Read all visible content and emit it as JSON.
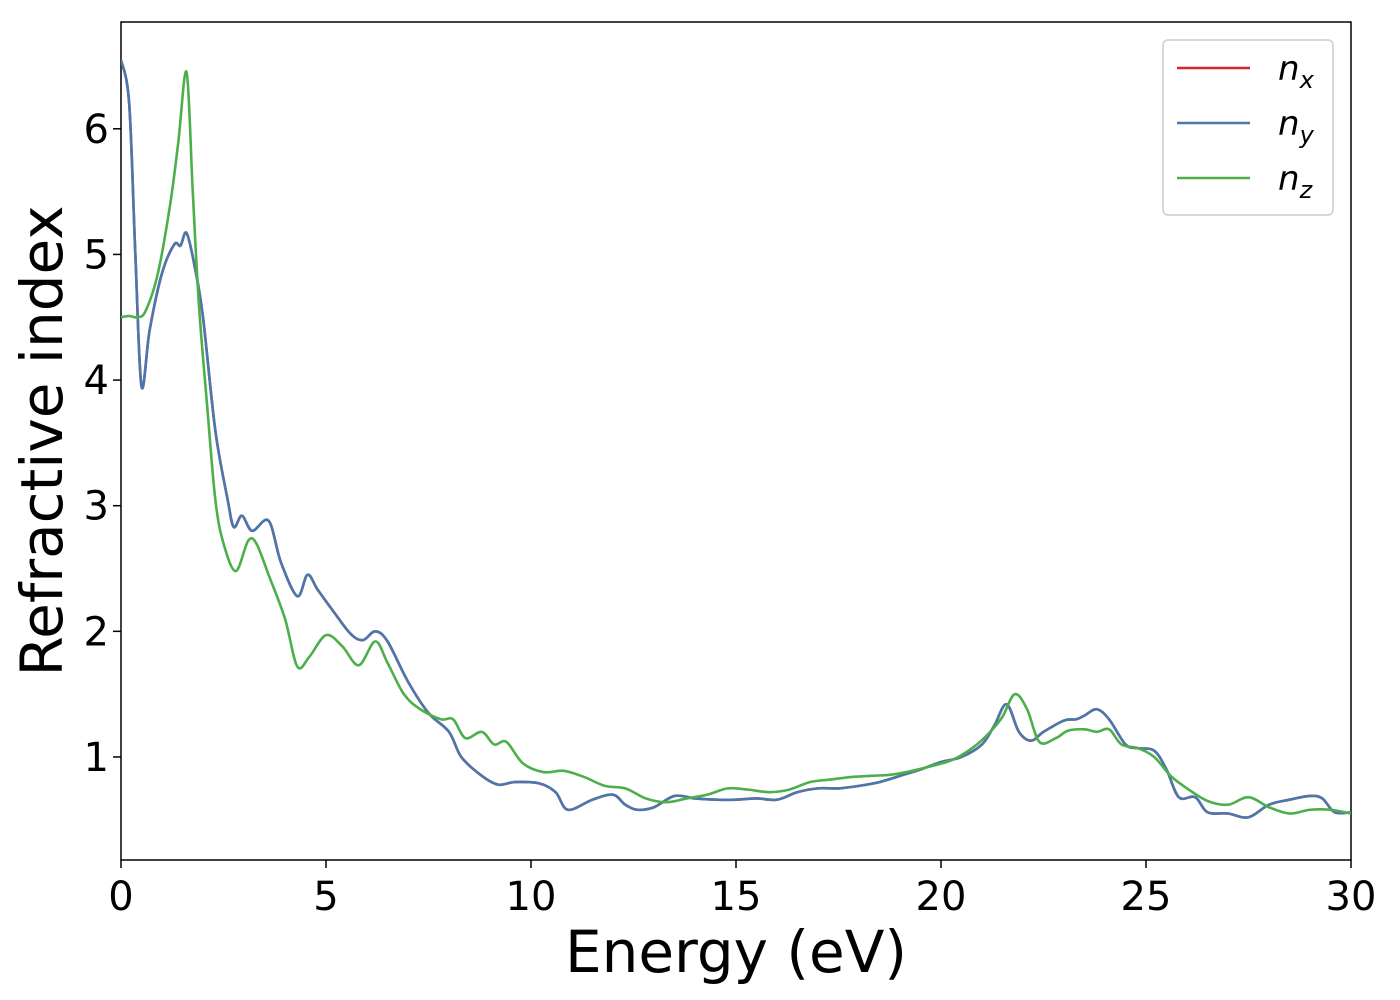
{
  "chart_data": {
    "type": "line",
    "title": "",
    "xlabel": "Energy (eV)",
    "ylabel": "Refractive index",
    "xlim": [
      0,
      30
    ],
    "ylim": [
      0.18,
      6.85
    ],
    "xticks": [
      0,
      5,
      10,
      15,
      20,
      25,
      30
    ],
    "xtick_labels": [
      "0",
      "5",
      "10",
      "15",
      "20",
      "25",
      "30"
    ],
    "yticks": [
      1,
      2,
      3,
      4,
      5,
      6
    ],
    "ytick_labels": [
      "1",
      "2",
      "3",
      "4",
      "5",
      "6"
    ],
    "grid": false,
    "legend_position": "top-right",
    "series": [
      {
        "name": "n_x",
        "legend_base": "n",
        "legend_sub": "x",
        "color": "#d62728",
        "x": [
          0,
          0.2,
          0.35,
          0.5,
          0.7,
          1.0,
          1.3,
          1.45,
          1.6,
          1.8,
          2.0,
          2.3,
          2.6,
          2.75,
          2.95,
          3.2,
          3.6,
          3.9,
          4.3,
          4.55,
          4.8,
          5.2,
          5.6,
          5.9,
          6.2,
          6.5,
          7.0,
          7.5,
          8.0,
          8.3,
          8.8,
          9.2,
          9.6,
          10.2,
          10.6,
          10.9,
          11.5,
          12.0,
          12.3,
          12.6,
          13.0,
          13.5,
          14.0,
          14.5,
          15.0,
          15.5,
          16.0,
          16.5,
          17.0,
          17.5,
          18.0,
          18.5,
          19.0,
          19.5,
          20.0,
          20.5,
          21.0,
          21.3,
          21.6,
          21.9,
          22.2,
          22.5,
          23.0,
          23.3,
          23.5,
          23.8,
          24.1,
          24.5,
          24.8,
          25.2,
          25.5,
          25.8,
          26.2,
          26.5,
          27.0,
          27.5,
          28.0,
          28.5,
          29.0,
          29.3,
          29.6,
          30.0
        ],
        "y": [
          6.55,
          6.2,
          5.0,
          3.95,
          4.4,
          4.85,
          5.08,
          5.07,
          5.17,
          4.9,
          4.5,
          3.6,
          3.05,
          2.83,
          2.92,
          2.8,
          2.88,
          2.55,
          2.28,
          2.45,
          2.33,
          2.15,
          1.98,
          1.93,
          2.0,
          1.92,
          1.6,
          1.35,
          1.2,
          1.0,
          0.85,
          0.78,
          0.8,
          0.79,
          0.72,
          0.58,
          0.66,
          0.7,
          0.62,
          0.58,
          0.6,
          0.69,
          0.67,
          0.66,
          0.66,
          0.67,
          0.66,
          0.72,
          0.75,
          0.75,
          0.77,
          0.8,
          0.85,
          0.9,
          0.96,
          1.0,
          1.1,
          1.25,
          1.42,
          1.2,
          1.13,
          1.2,
          1.29,
          1.3,
          1.33,
          1.38,
          1.3,
          1.1,
          1.07,
          1.05,
          0.9,
          0.68,
          0.68,
          0.56,
          0.55,
          0.52,
          0.62,
          0.66,
          0.69,
          0.67,
          0.56,
          0.56
        ]
      },
      {
        "name": "n_y",
        "legend_base": "n",
        "legend_sub": "y",
        "color": "#4a78ad",
        "x": [
          0,
          0.2,
          0.35,
          0.5,
          0.7,
          1.0,
          1.3,
          1.45,
          1.6,
          1.8,
          2.0,
          2.3,
          2.6,
          2.75,
          2.95,
          3.2,
          3.6,
          3.9,
          4.3,
          4.55,
          4.8,
          5.2,
          5.6,
          5.9,
          6.2,
          6.5,
          7.0,
          7.5,
          8.0,
          8.3,
          8.8,
          9.2,
          9.6,
          10.2,
          10.6,
          10.9,
          11.5,
          12.0,
          12.3,
          12.6,
          13.0,
          13.5,
          14.0,
          14.5,
          15.0,
          15.5,
          16.0,
          16.5,
          17.0,
          17.5,
          18.0,
          18.5,
          19.0,
          19.5,
          20.0,
          20.5,
          21.0,
          21.3,
          21.6,
          21.9,
          22.2,
          22.5,
          23.0,
          23.3,
          23.5,
          23.8,
          24.1,
          24.5,
          24.8,
          25.2,
          25.5,
          25.8,
          26.2,
          26.5,
          27.0,
          27.5,
          28.0,
          28.5,
          29.0,
          29.3,
          29.6,
          30.0
        ],
        "y": [
          6.55,
          6.2,
          5.0,
          3.95,
          4.4,
          4.85,
          5.08,
          5.07,
          5.17,
          4.9,
          4.5,
          3.6,
          3.05,
          2.83,
          2.92,
          2.8,
          2.88,
          2.55,
          2.28,
          2.45,
          2.33,
          2.15,
          1.98,
          1.93,
          2.0,
          1.92,
          1.6,
          1.35,
          1.2,
          1.0,
          0.85,
          0.78,
          0.8,
          0.79,
          0.72,
          0.58,
          0.66,
          0.7,
          0.62,
          0.58,
          0.6,
          0.69,
          0.67,
          0.66,
          0.66,
          0.67,
          0.66,
          0.72,
          0.75,
          0.75,
          0.77,
          0.8,
          0.85,
          0.9,
          0.96,
          1.0,
          1.1,
          1.25,
          1.42,
          1.2,
          1.13,
          1.2,
          1.29,
          1.3,
          1.33,
          1.38,
          1.3,
          1.1,
          1.07,
          1.05,
          0.9,
          0.68,
          0.68,
          0.56,
          0.55,
          0.52,
          0.62,
          0.66,
          0.69,
          0.67,
          0.56,
          0.56
        ]
      },
      {
        "name": "n_z",
        "legend_base": "n",
        "legend_sub": "z",
        "color": "#4daf4a",
        "x": [
          0,
          0.2,
          0.4,
          0.6,
          0.9,
          1.2,
          1.4,
          1.6,
          1.75,
          1.9,
          2.1,
          2.3,
          2.5,
          2.8,
          3.1,
          3.3,
          3.6,
          4.0,
          4.3,
          4.6,
          5.0,
          5.4,
          5.8,
          6.2,
          6.5,
          6.9,
          7.3,
          7.8,
          8.1,
          8.4,
          8.8,
          9.1,
          9.4,
          9.8,
          10.3,
          10.8,
          11.3,
          11.8,
          12.3,
          12.8,
          13.3,
          13.8,
          14.3,
          14.8,
          15.3,
          15.8,
          16.3,
          16.8,
          17.3,
          17.8,
          18.3,
          18.8,
          19.3,
          19.8,
          20.3,
          20.8,
          21.2,
          21.5,
          21.8,
          22.1,
          22.4,
          22.8,
          23.1,
          23.5,
          23.8,
          24.1,
          24.4,
          24.8,
          25.2,
          25.6,
          26.0,
          26.5,
          27.0,
          27.5,
          28.0,
          28.5,
          29.0,
          29.5,
          30.0
        ],
        "y": [
          4.5,
          4.51,
          4.5,
          4.55,
          4.85,
          5.4,
          5.9,
          6.45,
          5.5,
          4.6,
          3.8,
          3.05,
          2.7,
          2.48,
          2.72,
          2.7,
          2.45,
          2.1,
          1.72,
          1.8,
          1.97,
          1.88,
          1.73,
          1.92,
          1.75,
          1.5,
          1.38,
          1.3,
          1.3,
          1.15,
          1.2,
          1.1,
          1.12,
          0.95,
          0.88,
          0.89,
          0.84,
          0.77,
          0.75,
          0.67,
          0.64,
          0.67,
          0.7,
          0.75,
          0.74,
          0.72,
          0.74,
          0.8,
          0.82,
          0.84,
          0.85,
          0.86,
          0.89,
          0.93,
          0.98,
          1.08,
          1.2,
          1.32,
          1.5,
          1.38,
          1.12,
          1.15,
          1.21,
          1.22,
          1.2,
          1.22,
          1.1,
          1.07,
          1.0,
          0.85,
          0.75,
          0.65,
          0.62,
          0.68,
          0.6,
          0.55,
          0.58,
          0.58,
          0.55
        ]
      }
    ]
  }
}
